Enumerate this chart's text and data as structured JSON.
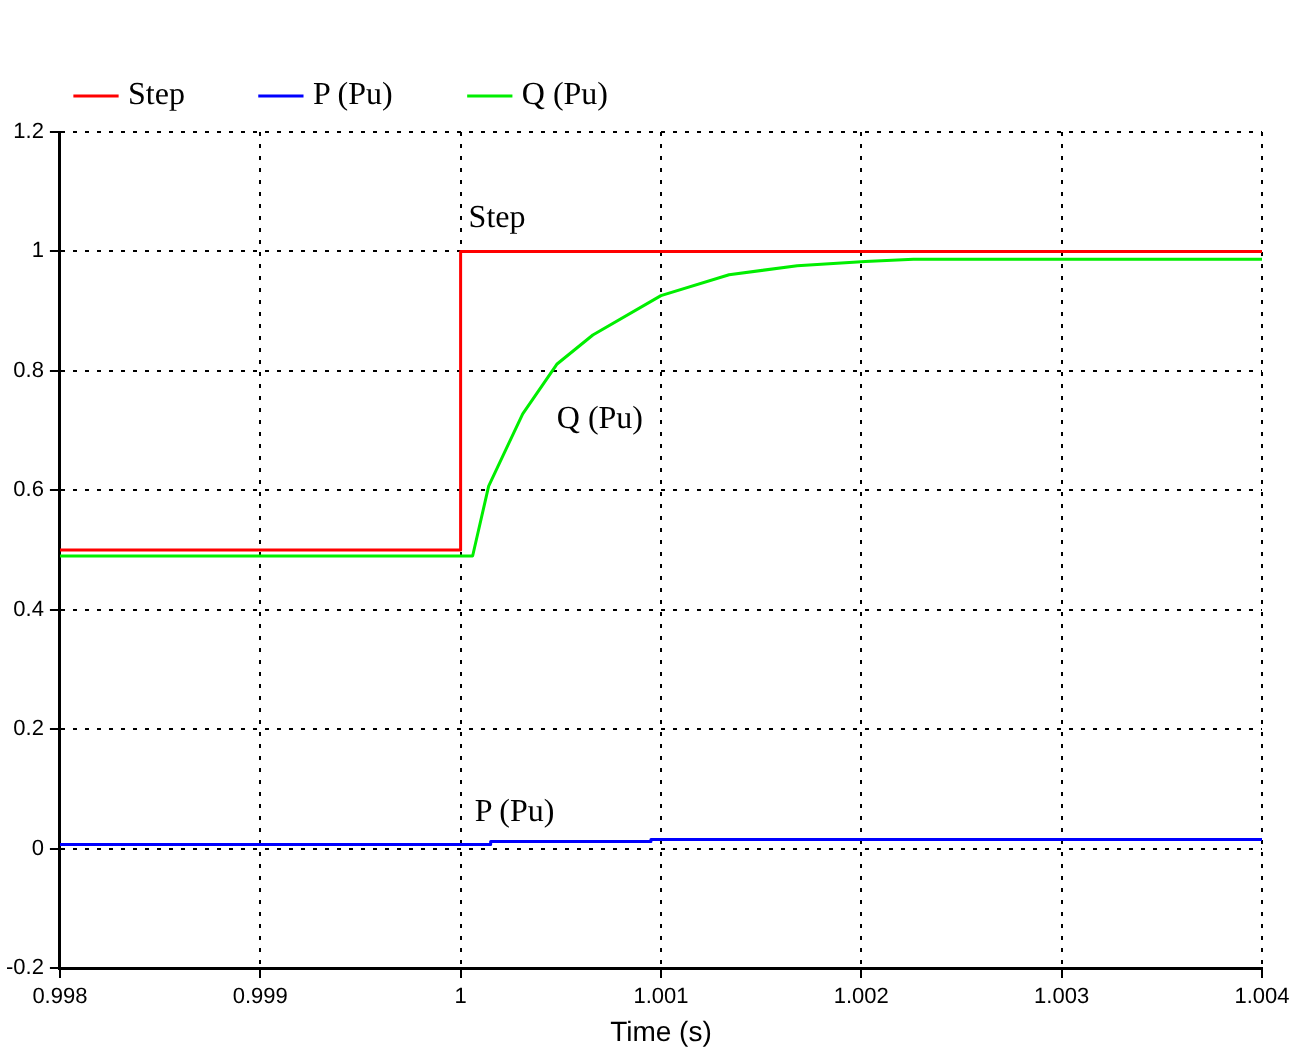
{
  "chart_data": {
    "type": "line",
    "xlabel": "Time (s)",
    "xlim": [
      0.998,
      1.004
    ],
    "xticks": [
      0.998,
      0.999,
      1,
      1.001,
      1.002,
      1.003,
      1.004
    ],
    "ylim": [
      -0.2,
      1.2
    ],
    "yticks": [
      -0.2,
      0,
      0.2,
      0.4,
      0.6,
      0.8,
      1,
      1.2
    ],
    "grid": true,
    "legend": "top left",
    "marker": "none",
    "line_style": "solid",
    "series": [
      {
        "name": "Step",
        "color": "#ff0000",
        "x": [
          0.998,
          1,
          1,
          1.004
        ],
        "values": [
          0.5,
          0.5,
          1,
          1
        ]
      },
      {
        "name": "P (Pu)",
        "color": "#0000ff",
        "x": [
          0.998,
          1.00015,
          1.00015,
          1.00095,
          1.00095,
          1.004
        ],
        "values": [
          0.007,
          0.007,
          0.012,
          0.012,
          0.015,
          0.015
        ]
      },
      {
        "name": "Q (Pu)",
        "color": "#00ee00",
        "x": [
          0.998,
          1.00006,
          1.00014,
          1.00031,
          1.00048,
          1.00066,
          1.001,
          1.00134,
          1.00168,
          1.00202,
          1.00226,
          1.004
        ],
        "values": [
          0.49,
          0.49,
          0.607,
          0.728,
          0.811,
          0.86,
          0.926,
          0.961,
          0.976,
          0.983,
          0.987,
          0.987
        ]
      }
    ],
    "annotations": [
      {
        "text": "Step",
        "x": 1,
        "y": 1
      },
      {
        "text": "Q (Pu)",
        "x": 1.00048,
        "y": 0.811
      },
      {
        "text": "P (Pu)",
        "x": 1.00015,
        "y": 0.012
      }
    ]
  }
}
